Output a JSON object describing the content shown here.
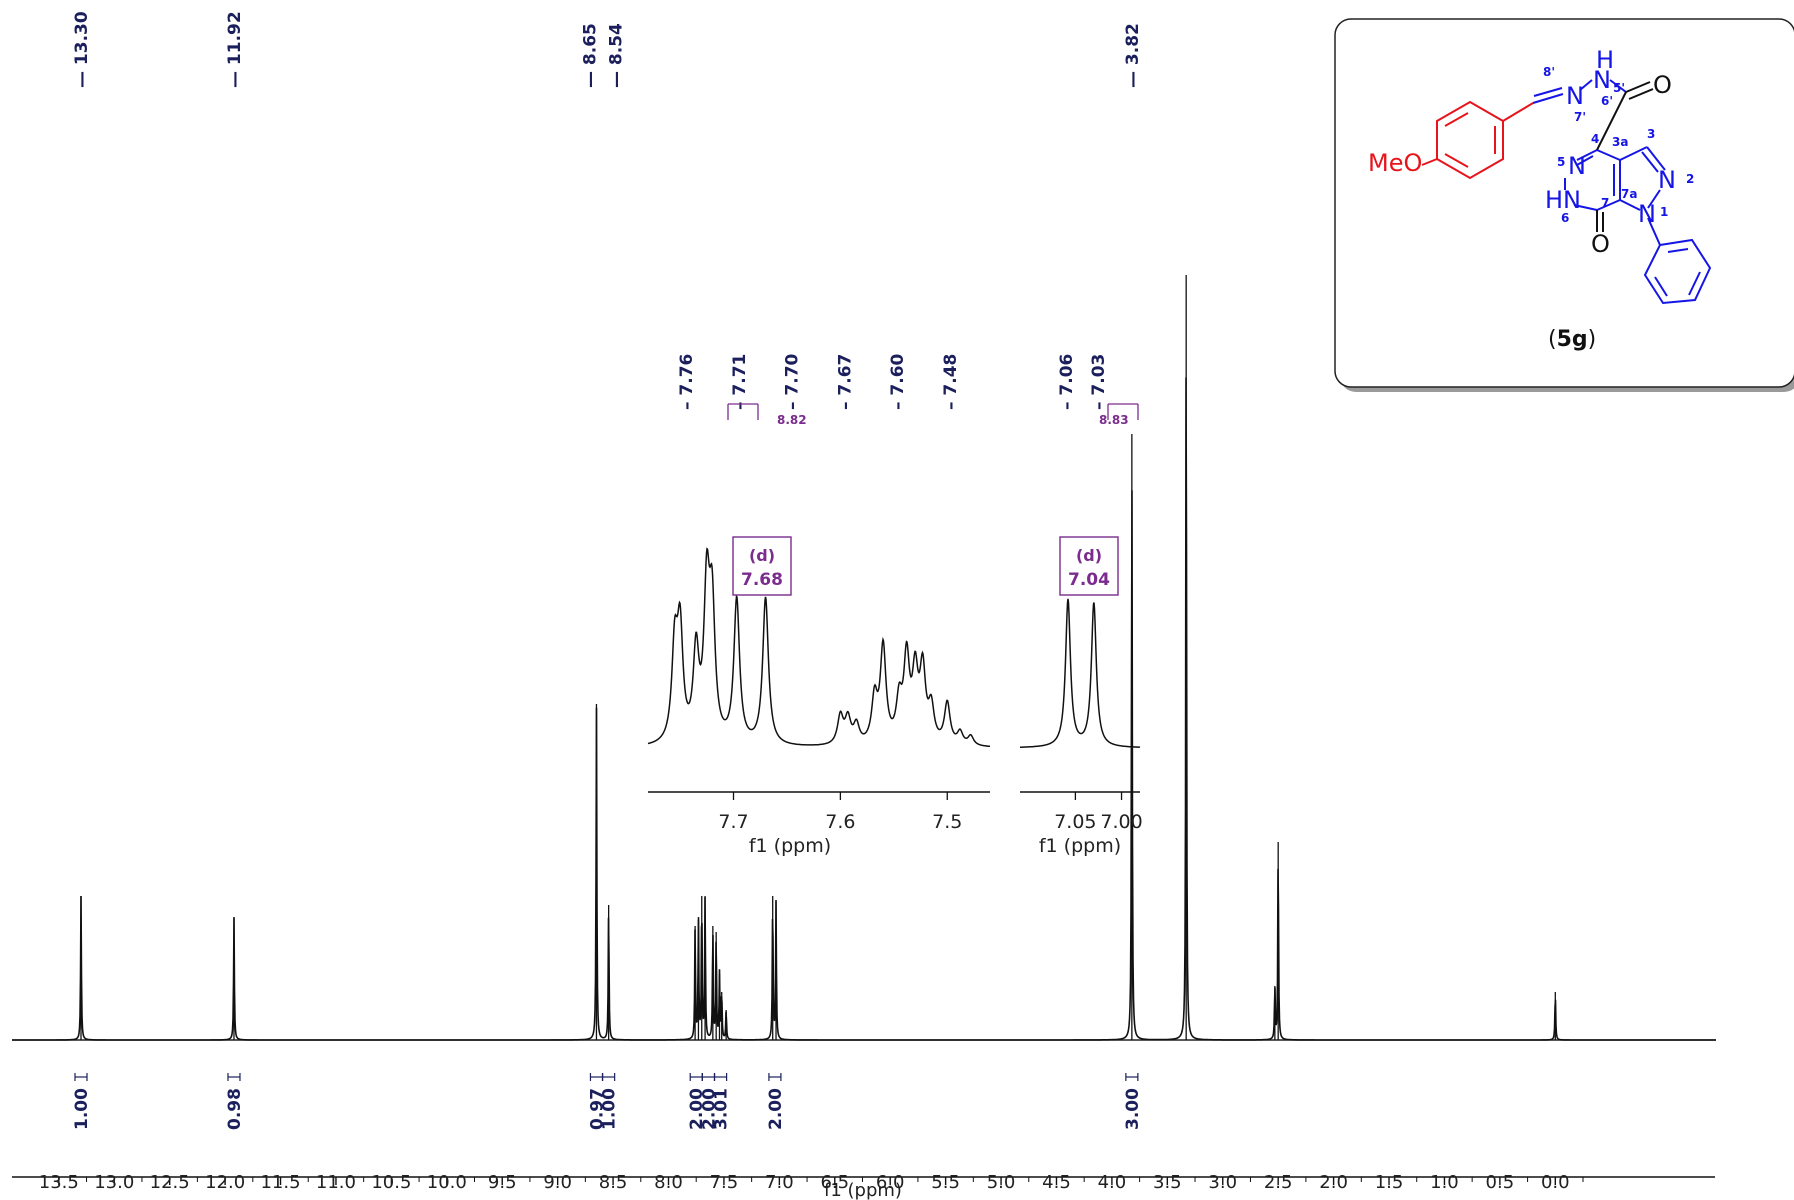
{
  "chart_data": {
    "type": "line",
    "xlabel": "f1 (ppm)",
    "xlim": [
      13.8,
      -0.3
    ],
    "xticks": [
      "13.5",
      "13.0",
      "12.5",
      "12.0",
      "11.5",
      "11.0",
      "10.5",
      "10.0",
      "9.5",
      "9.0",
      "8.5",
      "8.0",
      "7.5",
      "7.0",
      "6.5",
      "6.0",
      "5.5",
      "5.0",
      "4.5",
      "4.0",
      "3.5",
      "3.0",
      "2.5",
      "2.0",
      "1.5",
      "1.0",
      "0.5",
      "0.0"
    ],
    "peak_labels": [
      {
        "ppm": 13.3,
        "text": "13.30"
      },
      {
        "ppm": 11.92,
        "text": "11.92"
      },
      {
        "ppm": 8.65,
        "text": "8.65"
      },
      {
        "ppm": 8.54,
        "text": "8.54"
      },
      {
        "ppm": 3.82,
        "text": "3.82"
      }
    ],
    "peaks": [
      {
        "ppm": 13.3,
        "height": 0.48
      },
      {
        "ppm": 11.92,
        "height": 0.41
      },
      {
        "ppm": 8.65,
        "height": 1.12
      },
      {
        "ppm": 8.54,
        "height": 0.45
      },
      {
        "ppm": 7.76,
        "height": 0.38
      },
      {
        "ppm": 7.73,
        "height": 0.4
      },
      {
        "ppm": 7.7,
        "height": 0.48
      },
      {
        "ppm": 7.67,
        "height": 0.48
      },
      {
        "ppm": 7.6,
        "height": 0.38
      },
      {
        "ppm": 7.57,
        "height": 0.36
      },
      {
        "ppm": 7.54,
        "height": 0.22
      },
      {
        "ppm": 7.52,
        "height": 0.16
      },
      {
        "ppm": 7.48,
        "height": 0.1
      },
      {
        "ppm": 7.06,
        "height": 0.48
      },
      {
        "ppm": 7.03,
        "height": 0.46
      },
      {
        "ppm": 3.82,
        "height": 2.02
      },
      {
        "ppm": 3.33,
        "height": 2.55
      },
      {
        "ppm": 2.53,
        "height": 0.18
      },
      {
        "ppm": 2.5,
        "height": 0.66
      },
      {
        "ppm": 0.0,
        "height": 0.16
      }
    ],
    "integrals": [
      {
        "ppm": 13.3,
        "text": "1.00"
      },
      {
        "ppm": 11.92,
        "text": "0.98"
      },
      {
        "ppm": 8.65,
        "text": "0.97"
      },
      {
        "ppm": 8.54,
        "text": "1.00"
      },
      {
        "ppm": 7.75,
        "text": "2.00"
      },
      {
        "ppm": 7.64,
        "text": "2.00"
      },
      {
        "ppm": 7.53,
        "text": "3.01"
      },
      {
        "ppm": 7.04,
        "text": "2.00"
      },
      {
        "ppm": 3.82,
        "text": "3.00"
      }
    ],
    "insets": [
      {
        "xlabel": "f1 (ppm)",
        "xlim": [
          7.78,
          7.46
        ],
        "xticks": [
          "7.7",
          "7.6",
          "7.5"
        ],
        "peak_labels": [
          "7.76",
          "7.71",
          "7.70",
          "7.67",
          "7.60",
          "7.48"
        ],
        "coupling_label": "8.82",
        "multiplet_type": "(d)",
        "multiplet_shift": "7.68",
        "peaks": [
          {
            "ppm": 7.755,
            "height": 0.58
          },
          {
            "ppm": 7.75,
            "height": 0.68
          },
          {
            "ppm": 7.735,
            "height": 0.55
          },
          {
            "ppm": 7.725,
            "height": 0.92
          },
          {
            "ppm": 7.72,
            "height": 0.8
          },
          {
            "ppm": 7.697,
            "height": 0.9
          },
          {
            "ppm": 7.67,
            "height": 0.92
          },
          {
            "ppm": 7.6,
            "height": 0.18
          },
          {
            "ppm": 7.593,
            "height": 0.16
          },
          {
            "ppm": 7.585,
            "height": 0.12
          },
          {
            "ppm": 7.568,
            "height": 0.28
          },
          {
            "ppm": 7.56,
            "height": 0.6
          },
          {
            "ppm": 7.545,
            "height": 0.25
          },
          {
            "ppm": 7.538,
            "height": 0.52
          },
          {
            "ppm": 7.53,
            "height": 0.42
          },
          {
            "ppm": 7.523,
            "height": 0.45
          },
          {
            "ppm": 7.515,
            "height": 0.22
          },
          {
            "ppm": 7.5,
            "height": 0.26
          },
          {
            "ppm": 7.488,
            "height": 0.08
          },
          {
            "ppm": 7.478,
            "height": 0.06
          }
        ]
      },
      {
        "xlabel": "f1 (ppm)",
        "xlim": [
          7.11,
          6.98
        ],
        "xticks": [
          "7.05",
          "7.00"
        ],
        "peak_labels": [
          "7.06",
          "7.03"
        ],
        "coupling_label": "8.83",
        "multiplet_type": "(d)",
        "multiplet_shift": "7.04",
        "peaks": [
          {
            "ppm": 7.058,
            "height": 0.92
          },
          {
            "ppm": 7.03,
            "height": 0.9
          }
        ]
      }
    ]
  },
  "structure": {
    "compound_label_prefix": "(",
    "compound_label": "5g",
    "compound_label_suffix": ")",
    "atoms": {
      "meo": "MeO",
      "o_amide": "O",
      "o_ring": "O",
      "nh_h": "H",
      "n_hydrazone": "N",
      "n_amide": "N",
      "n5": "N",
      "hn6": "HN",
      "n2": "N",
      "n1": "N"
    },
    "locants": [
      "8'",
      "7'",
      "6'",
      "5'",
      "4",
      "3a",
      "3",
      "5",
      "6",
      "7",
      "7a",
      "2",
      "1"
    ],
    "colors": {
      "methoxyphenyl": "#e8141c",
      "core": "#1515e6",
      "carbonyl": "#111111",
      "annotation": "#7b2c8e"
    }
  }
}
